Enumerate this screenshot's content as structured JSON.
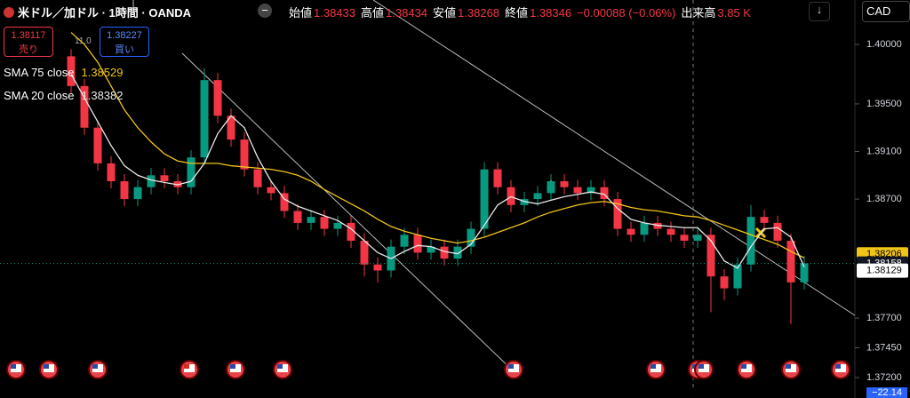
{
  "header": {
    "title": "米ドル／加ドル · 1時間 · OANDA",
    "ohlc": [
      {
        "label": "始値",
        "value": 1.38433
      },
      {
        "label": "高値",
        "value": 1.38434
      },
      {
        "label": "安値",
        "value": 1.38268
      },
      {
        "label": "終値",
        "value": 1.38346
      }
    ],
    "change": "−0.00088 (−0.06%)",
    "volume_label": "出来高",
    "volume": "3.85 K",
    "currency": "CAD"
  },
  "trade": {
    "sell_price": 1.38117,
    "sell_label": "売り",
    "spread": "11.0",
    "buy_price": 1.38227,
    "buy_label": "買い"
  },
  "bottom": {
    "value": "−22.14"
  },
  "chart_data": {
    "type": "candlestick",
    "title": "米ドル／加ドル · 1時間 · OANDA",
    "up_color": "#089981",
    "down_color": "#f23645",
    "open": [
      1.399,
      1.3965,
      1.393,
      1.39,
      1.3885,
      1.387,
      1.388,
      1.389,
      1.3885,
      1.388,
      1.3905,
      1.397,
      1.394,
      1.392,
      1.3895,
      1.388,
      1.3875,
      1.386,
      1.385,
      1.3855,
      1.3845,
      1.385,
      1.3835,
      1.3815,
      1.381,
      1.383,
      1.384,
      1.3825,
      1.383,
      1.382,
      1.383,
      1.3845,
      1.3895,
      1.388,
      1.3865,
      1.387,
      1.3875,
      1.3885,
      1.388,
      1.3875,
      1.388,
      1.387,
      1.3845,
      1.384,
      1.385,
      1.3845,
      1.384,
      1.3835,
      1.384,
      1.3805,
      1.3795,
      1.3815,
      1.3855,
      1.385,
      1.3835,
      1.38
    ],
    "high": [
      1.3996,
      1.3971,
      1.3936,
      1.3906,
      1.3891,
      1.3886,
      1.3896,
      1.3896,
      1.3891,
      1.3911,
      1.398,
      1.3976,
      1.3946,
      1.3926,
      1.3901,
      1.3886,
      1.3881,
      1.3866,
      1.3861,
      1.3861,
      1.3856,
      1.3856,
      1.3841,
      1.3821,
      1.3836,
      1.3846,
      1.3846,
      1.3836,
      1.3836,
      1.3836,
      1.3851,
      1.3901,
      1.3901,
      1.3886,
      1.3876,
      1.3881,
      1.3891,
      1.3891,
      1.3886,
      1.3886,
      1.3886,
      1.3876,
      1.3851,
      1.3856,
      1.3856,
      1.3851,
      1.3846,
      1.3846,
      1.3846,
      1.3811,
      1.3821,
      1.3865,
      1.3861,
      1.3856,
      1.3841,
      1.3822
    ],
    "low": [
      1.3959,
      1.3924,
      1.3894,
      1.3879,
      1.3864,
      1.3864,
      1.3874,
      1.3879,
      1.3874,
      1.3874,
      1.3899,
      1.3934,
      1.3914,
      1.3889,
      1.3874,
      1.3869,
      1.3854,
      1.3844,
      1.3844,
      1.3839,
      1.3839,
      1.3829,
      1.3805,
      1.38,
      1.3804,
      1.3824,
      1.3819,
      1.3819,
      1.3814,
      1.3814,
      1.3824,
      1.3839,
      1.3874,
      1.3859,
      1.3859,
      1.3864,
      1.3869,
      1.3874,
      1.3869,
      1.3869,
      1.3864,
      1.3839,
      1.3834,
      1.3834,
      1.3839,
      1.3834,
      1.3829,
      1.3829,
      1.3775,
      1.3785,
      1.3789,
      1.3809,
      1.3844,
      1.3829,
      1.3765,
      1.3794
    ],
    "close": [
      1.3965,
      1.393,
      1.39,
      1.3885,
      1.387,
      1.388,
      1.389,
      1.3885,
      1.388,
      1.3905,
      1.397,
      1.394,
      1.392,
      1.3895,
      1.388,
      1.3875,
      1.386,
      1.385,
      1.3855,
      1.3845,
      1.385,
      1.3835,
      1.3815,
      1.381,
      1.383,
      1.384,
      1.3825,
      1.383,
      1.382,
      1.383,
      1.3845,
      1.3895,
      1.388,
      1.3865,
      1.387,
      1.3875,
      1.3885,
      1.388,
      1.3875,
      1.388,
      1.387,
      1.3845,
      1.384,
      1.385,
      1.3845,
      1.384,
      1.3835,
      1.384,
      1.3805,
      1.3795,
      1.3815,
      1.3855,
      1.385,
      1.3835,
      1.38,
      1.3816
    ],
    "series": [
      {
        "name": "SMA 75 close",
        "color": "#f0c419",
        "legend_value": 1.38529,
        "values": [
          1.401,
          1.4,
          1.3985,
          1.3965,
          1.3945,
          1.393,
          1.3918,
          1.3908,
          1.3902,
          1.39,
          1.39,
          1.39,
          1.3898,
          1.3897,
          1.3896,
          1.3895,
          1.3893,
          1.389,
          1.3885,
          1.3878,
          1.3872,
          1.3866,
          1.386,
          1.3853,
          1.3847,
          1.3843,
          1.384,
          1.3837,
          1.3835,
          1.3833,
          1.3835,
          1.3838,
          1.3842,
          1.3846,
          1.385,
          1.3855,
          1.3859,
          1.3862,
          1.3865,
          1.3867,
          1.3868,
          1.3866,
          1.3863,
          1.3861,
          1.386,
          1.3858,
          1.3856,
          1.3855,
          1.3852,
          1.3848,
          1.3844,
          1.384,
          1.3836,
          1.3832,
          1.3826,
          1.38206
        ]
      },
      {
        "name": "SMA 20 close",
        "color": "#e8e8e8",
        "legend_value": 1.38382,
        "values": [
          1.3975,
          1.3955,
          1.3935,
          1.3915,
          1.3898,
          1.389,
          1.3886,
          1.3884,
          1.3882,
          1.3885,
          1.39,
          1.3925,
          1.394,
          1.393,
          1.3905,
          1.3885,
          1.387,
          1.3864,
          1.386,
          1.3856,
          1.3852,
          1.3845,
          1.3835,
          1.3825,
          1.382,
          1.3826,
          1.3831,
          1.383,
          1.3826,
          1.3824,
          1.3832,
          1.3848,
          1.3865,
          1.3872,
          1.3868,
          1.3866,
          1.3869,
          1.3872,
          1.3874,
          1.3876,
          1.3874,
          1.3862,
          1.3853,
          1.385,
          1.3848,
          1.3847,
          1.3846,
          1.3846,
          1.3835,
          1.3818,
          1.3812,
          1.383,
          1.3845,
          1.3846,
          1.3838,
          1.38129
        ]
      }
    ],
    "price_tags": [
      {
        "value": 1.38206,
        "color": "#f0c419"
      },
      {
        "value": 1.38158,
        "color": "#131722"
      },
      {
        "value": 1.38129,
        "color": "#ffffff"
      }
    ],
    "ylim": [
      1.37088,
      1.40373
    ],
    "yticks": [
      {
        "value": 1.4,
        "label": "1.40000"
      },
      {
        "value": 1.395,
        "label": "1.39500"
      },
      {
        "value": 1.391,
        "label": "1.39100"
      },
      {
        "value": 1.387,
        "label": "1.38700"
      },
      {
        "value": 1.377,
        "label": "1.37700"
      },
      {
        "value": 1.3745,
        "label": "1.37450"
      },
      {
        "value": 1.372,
        "label": "1.37200"
      }
    ]
  }
}
